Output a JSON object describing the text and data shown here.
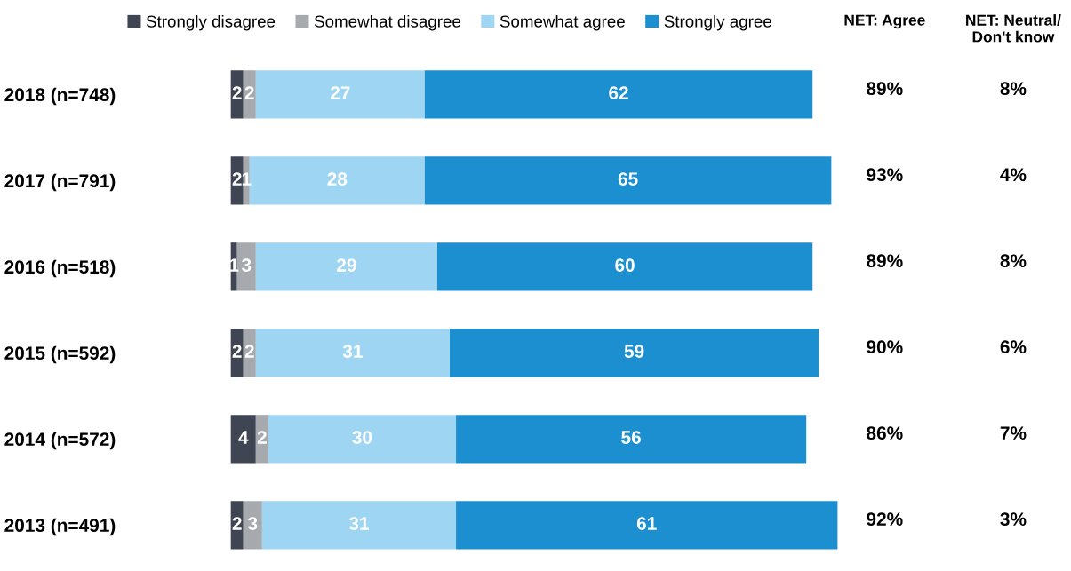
{
  "chart_data": {
    "type": "bar",
    "orientation": "horizontal",
    "stacked": true,
    "data_labels": true,
    "legend": "top",
    "grid": false,
    "categories": [
      "2018 (n=748)",
      "2017 (n=791)",
      "2016 (n=518)",
      "2015 (n=592)",
      "2014 (n=572)",
      "2013 (n=491)"
    ],
    "series": [
      {
        "name": "Strongly disagree",
        "color": "#3f4553",
        "values": [
          2,
          2,
          1,
          2,
          4,
          2
        ]
      },
      {
        "name": "Somewhat disagree",
        "color": "#a6a9ae",
        "values": [
          2,
          1,
          3,
          2,
          2,
          3
        ]
      },
      {
        "name": "Somewhat agree",
        "color": "#9dd5f2",
        "values": [
          27,
          28,
          29,
          31,
          30,
          31
        ]
      },
      {
        "name": "Strongly agree",
        "color": "#1b8fd0",
        "values": [
          62,
          65,
          60,
          59,
          56,
          61
        ]
      }
    ],
    "annotations": [
      "NET: Agree",
      "NET: Neutral/\nDon't know",
      "89%",
      "8%",
      "93%",
      "4%",
      "89%",
      "8%",
      "90%",
      "6%",
      "86%",
      "7%",
      "92%",
      "3%"
    ]
  }
}
